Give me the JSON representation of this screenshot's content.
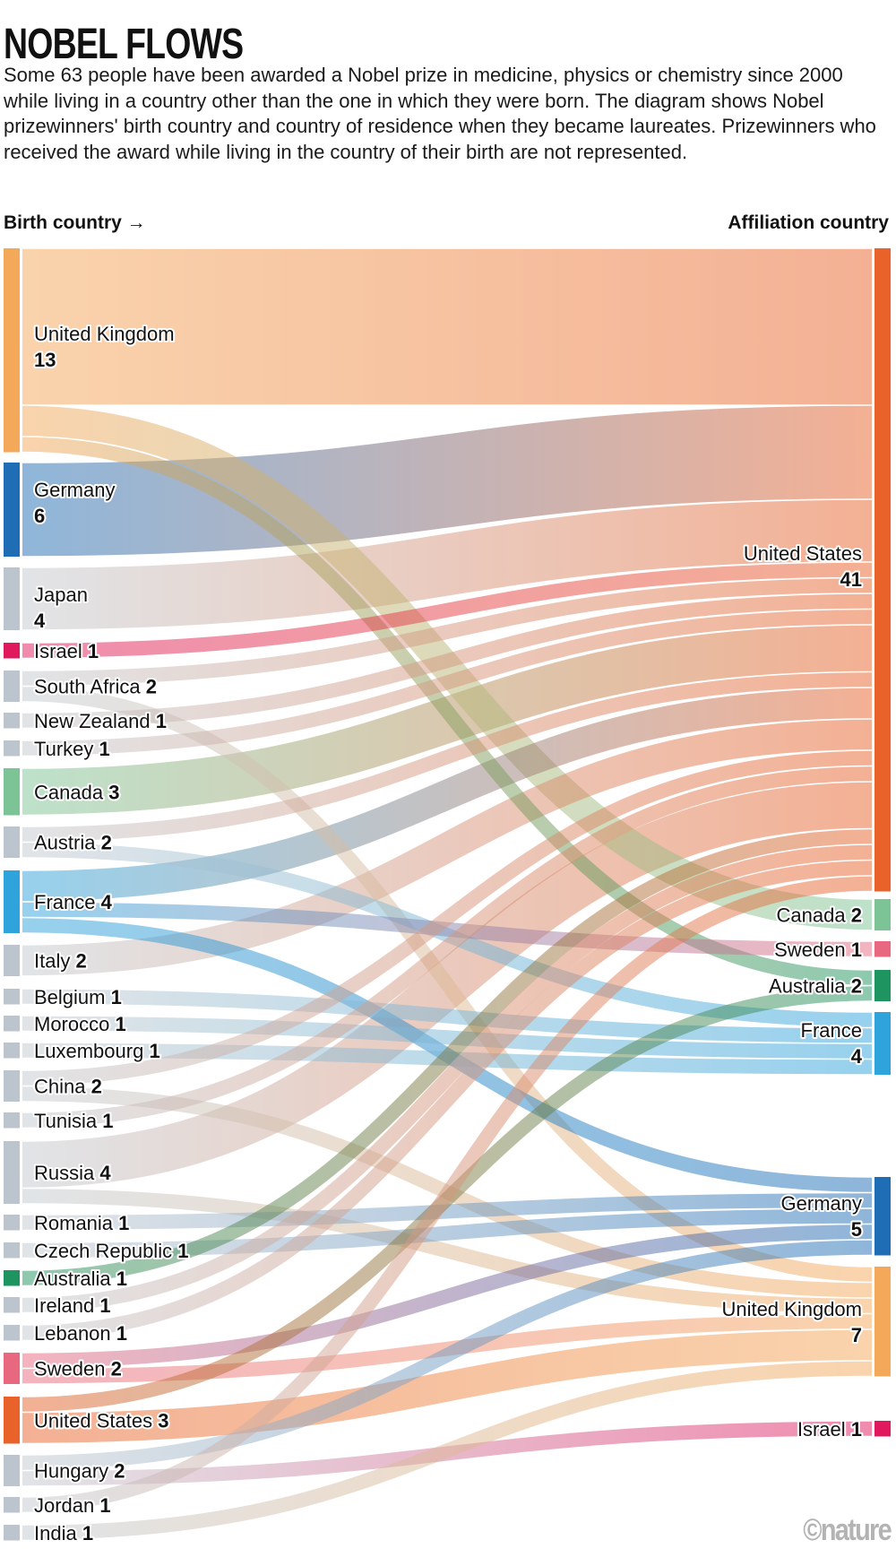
{
  "header": {
    "title": "NOBEL FLOWS",
    "description": "Some 63 people have been awarded a Nobel prize in medicine, physics or chemistry since 2000 while living in a country other than the one in which they were born. The diagram shows Nobel prizewinners' birth country and country of residence when they became laureates. Prizewinners who received the award while living in the country of their birth are not represented.",
    "left_axis_label": "Birth country →",
    "right_axis_label": "Affiliation country"
  },
  "logo": "©nature",
  "chart_data": {
    "type": "sankey",
    "total": 63,
    "left_nodes": [
      {
        "name": "United Kingdom",
        "value": 13,
        "color": "#f4a85a"
      },
      {
        "name": "Germany",
        "value": 6,
        "color": "#1f6db5"
      },
      {
        "name": "Japan",
        "value": 4,
        "color": "#bcc5ce"
      },
      {
        "name": "Israel",
        "value": 1,
        "color": "#e0185e"
      },
      {
        "name": "South Africa",
        "value": 2,
        "color": "#bcc5ce"
      },
      {
        "name": "New Zealand",
        "value": 1,
        "color": "#bcc5ce"
      },
      {
        "name": "Turkey",
        "value": 1,
        "color": "#bcc5ce"
      },
      {
        "name": "Canada",
        "value": 3,
        "color": "#7cc495"
      },
      {
        "name": "Austria",
        "value": 2,
        "color": "#bcc5ce"
      },
      {
        "name": "France",
        "value": 4,
        "color": "#2fa3dc"
      },
      {
        "name": "Italy",
        "value": 2,
        "color": "#bcc5ce"
      },
      {
        "name": "Belgium",
        "value": 1,
        "color": "#bcc5ce"
      },
      {
        "name": "Morocco",
        "value": 1,
        "color": "#bcc5ce"
      },
      {
        "name": "Luxembourg",
        "value": 1,
        "color": "#bcc5ce"
      },
      {
        "name": "China",
        "value": 2,
        "color": "#bcc5ce"
      },
      {
        "name": "Tunisia",
        "value": 1,
        "color": "#bcc5ce"
      },
      {
        "name": "Russia",
        "value": 4,
        "color": "#bcc5ce"
      },
      {
        "name": "Romania",
        "value": 1,
        "color": "#bcc5ce"
      },
      {
        "name": "Czech Republic",
        "value": 1,
        "color": "#bcc5ce"
      },
      {
        "name": "Australia",
        "value": 1,
        "color": "#1e9460"
      },
      {
        "name": "Ireland",
        "value": 1,
        "color": "#bcc5ce"
      },
      {
        "name": "Lebanon",
        "value": 1,
        "color": "#bcc5ce"
      },
      {
        "name": "Sweden",
        "value": 2,
        "color": "#e8687f"
      },
      {
        "name": "United States",
        "value": 3,
        "color": "#e8622a"
      },
      {
        "name": "Hungary",
        "value": 2,
        "color": "#bcc5ce"
      },
      {
        "name": "Jordan",
        "value": 1,
        "color": "#bcc5ce"
      },
      {
        "name": "India",
        "value": 1,
        "color": "#bcc5ce"
      }
    ],
    "right_nodes": [
      {
        "name": "United States",
        "value": 41,
        "color": "#e8622a"
      },
      {
        "name": "Canada",
        "value": 2,
        "color": "#7cc495"
      },
      {
        "name": "Sweden",
        "value": 1,
        "color": "#e8687f"
      },
      {
        "name": "Australia",
        "value": 2,
        "color": "#1e9460"
      },
      {
        "name": "France",
        "value": 4,
        "color": "#2fa3dc"
      },
      {
        "name": "Germany",
        "value": 5,
        "color": "#1f6db5"
      },
      {
        "name": "United Kingdom",
        "value": 7,
        "color": "#f4a85a"
      },
      {
        "name": "Israel",
        "value": 1,
        "color": "#e0185e"
      }
    ],
    "links": [
      {
        "source": "United Kingdom",
        "target": "United States",
        "value": 10
      },
      {
        "source": "United Kingdom",
        "target": "Canada",
        "value": 2
      },
      {
        "source": "United Kingdom",
        "target": "Australia",
        "value": 1
      },
      {
        "source": "Germany",
        "target": "United States",
        "value": 6
      },
      {
        "source": "Japan",
        "target": "United States",
        "value": 4
      },
      {
        "source": "Israel",
        "target": "United States",
        "value": 1
      },
      {
        "source": "South Africa",
        "target": "United States",
        "value": 1
      },
      {
        "source": "South Africa",
        "target": "United Kingdom",
        "value": 1
      },
      {
        "source": "New Zealand",
        "target": "United States",
        "value": 1
      },
      {
        "source": "Turkey",
        "target": "United States",
        "value": 1
      },
      {
        "source": "Canada",
        "target": "United States",
        "value": 3
      },
      {
        "source": "Austria",
        "target": "United States",
        "value": 1
      },
      {
        "source": "Austria",
        "target": "France",
        "value": 1
      },
      {
        "source": "France",
        "target": "United States",
        "value": 2
      },
      {
        "source": "France",
        "target": "Sweden",
        "value": 1
      },
      {
        "source": "France",
        "target": "Germany",
        "value": 1
      },
      {
        "source": "Italy",
        "target": "United States",
        "value": 2
      },
      {
        "source": "Belgium",
        "target": "France",
        "value": 1
      },
      {
        "source": "Morocco",
        "target": "France",
        "value": 1
      },
      {
        "source": "Luxembourg",
        "target": "France",
        "value": 1
      },
      {
        "source": "China",
        "target": "United States",
        "value": 1
      },
      {
        "source": "China",
        "target": "United Kingdom",
        "value": 1
      },
      {
        "source": "Tunisia",
        "target": "United States",
        "value": 1
      },
      {
        "source": "Russia",
        "target": "United States",
        "value": 3
      },
      {
        "source": "Russia",
        "target": "United Kingdom",
        "value": 1
      },
      {
        "source": "Romania",
        "target": "Germany",
        "value": 1
      },
      {
        "source": "Czech Republic",
        "target": "Germany",
        "value": 1
      },
      {
        "source": "Australia",
        "target": "United States",
        "value": 1
      },
      {
        "source": "Ireland",
        "target": "United States",
        "value": 1
      },
      {
        "source": "Lebanon",
        "target": "United States",
        "value": 1
      },
      {
        "source": "Sweden",
        "target": "Germany",
        "value": 1
      },
      {
        "source": "Sweden",
        "target": "United Kingdom",
        "value": 1
      },
      {
        "source": "United States",
        "target": "Australia",
        "value": 1
      },
      {
        "source": "United States",
        "target": "United Kingdom",
        "value": 2
      },
      {
        "source": "Hungary",
        "target": "Germany",
        "value": 1
      },
      {
        "source": "Hungary",
        "target": "Israel",
        "value": 1
      },
      {
        "source": "Jordan",
        "target": "United States",
        "value": 1
      },
      {
        "source": "India",
        "target": "United Kingdom",
        "value": 1
      }
    ]
  }
}
